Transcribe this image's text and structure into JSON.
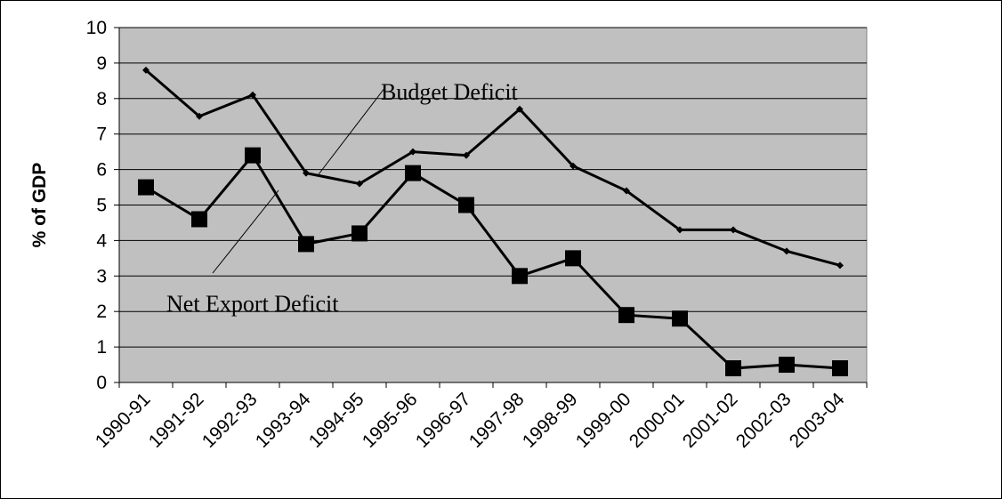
{
  "chart_data": {
    "type": "line",
    "categories": [
      "1990-91",
      "1991-92",
      "1992-93",
      "1993-94",
      "1994-95",
      "1995-96",
      "1996-97",
      "1997-98",
      "1998-99",
      "1999-00",
      "2000-01",
      "2001-02",
      "2002-03",
      "2003-04"
    ],
    "series": [
      {
        "name": "Budget Deficit",
        "values": [
          8.8,
          7.5,
          8.1,
          5.9,
          5.6,
          6.5,
          6.4,
          7.7,
          6.1,
          5.4,
          4.3,
          4.3,
          3.7,
          3.3
        ],
        "marker": "diamond",
        "color": "#000000"
      },
      {
        "name": "Net Export Deficit",
        "values": [
          5.5,
          4.6,
          6.4,
          3.9,
          4.2,
          5.9,
          5.0,
          3.0,
          3.5,
          1.9,
          1.8,
          0.4,
          0.5,
          0.4
        ],
        "marker": "square",
        "color": "#000000"
      }
    ],
    "title": "",
    "xlabel": "",
    "ylabel": "% of GDP",
    "ylim": [
      0,
      10
    ],
    "yticks": [
      "0",
      "1",
      "2",
      "3",
      "4",
      "5",
      "6",
      "7",
      "8",
      "9",
      "10"
    ],
    "grid": true,
    "plot_background": "#c0c0c0",
    "annotations": [
      {
        "text": "Budget Deficit",
        "series": "Budget Deficit"
      },
      {
        "text": "Net Export Deficit",
        "series": "Net Export Deficit"
      }
    ]
  }
}
